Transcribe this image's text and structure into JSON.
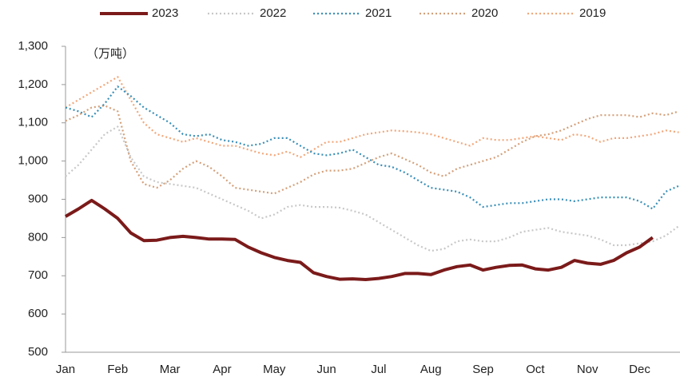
{
  "chart_data": {
    "type": "line",
    "annotation": "（万吨）",
    "categories": [
      "Jan",
      null,
      null,
      null,
      "Feb",
      null,
      null,
      null,
      "Mar",
      null,
      null,
      null,
      "Apr",
      null,
      null,
      null,
      "May",
      null,
      null,
      null,
      "Jun",
      null,
      null,
      null,
      "Jul",
      null,
      null,
      null,
      "Aug",
      null,
      null,
      null,
      "Sep",
      null,
      null,
      null,
      "Oct",
      null,
      null,
      null,
      "Nov",
      null,
      null,
      null,
      "Dec",
      null,
      null,
      null
    ],
    "ylim": [
      500,
      1300
    ],
    "yticks": [
      500,
      600,
      700,
      800,
      900,
      {
        "value": 1000,
        "label": "1,000"
      },
      {
        "value": 1100,
        "label": "1,100"
      },
      {
        "value": 1200,
        "label": "1,200"
      },
      {
        "value": 1300,
        "label": "1,300"
      }
    ],
    "series": [
      {
        "name": "2023",
        "color": "#7b1a1a",
        "style": "solid",
        "values": [
          855,
          875,
          897,
          875,
          850,
          812,
          792,
          793,
          800,
          803,
          800,
          796,
          796,
          795,
          775,
          760,
          748,
          740,
          735,
          708,
          698,
          691,
          692,
          690,
          693,
          698,
          706,
          706,
          703,
          715,
          724,
          728,
          715,
          722,
          727,
          728,
          718,
          715,
          722,
          740,
          733,
          730,
          740,
          760,
          775,
          800,
          null,
          null
        ]
      },
      {
        "name": "2022",
        "color": "#c8c8c8",
        "style": "dotted",
        "values": [
          960,
          990,
          1030,
          1070,
          1090,
          1010,
          960,
          945,
          940,
          935,
          930,
          915,
          900,
          885,
          870,
          850,
          860,
          880,
          885,
          880,
          880,
          878,
          870,
          860,
          840,
          820,
          800,
          780,
          765,
          770,
          790,
          795,
          790,
          790,
          800,
          815,
          820,
          825,
          815,
          810,
          805,
          795,
          780,
          780,
          785,
          790,
          805,
          830
        ]
      },
      {
        "name": "2021",
        "color": "#3a8fb7",
        "style": "dotted",
        "values": [
          1140,
          1130,
          1115,
          1150,
          1195,
          1170,
          1140,
          1120,
          1100,
          1070,
          1065,
          1070,
          1055,
          1050,
          1040,
          1045,
          1060,
          1060,
          1040,
          1020,
          1015,
          1020,
          1030,
          1010,
          990,
          985,
          970,
          950,
          930,
          925,
          920,
          905,
          880,
          885,
          890,
          890,
          895,
          900,
          900,
          895,
          900,
          905,
          905,
          905,
          895,
          875,
          920,
          935
        ]
      },
      {
        "name": "2020",
        "color": "#d4a07a",
        "style": "dotted",
        "values": [
          1105,
          1120,
          1140,
          1145,
          1130,
          1000,
          940,
          930,
          950,
          980,
          1000,
          985,
          960,
          930,
          925,
          920,
          915,
          930,
          945,
          965,
          975,
          975,
          980,
          995,
          1010,
          1020,
          1005,
          990,
          970,
          960,
          980,
          990,
          1000,
          1010,
          1030,
          1050,
          1065,
          1070,
          1080,
          1095,
          1110,
          1120,
          1120,
          1120,
          1115,
          1125,
          1120,
          1130
        ]
      },
      {
        "name": "2019",
        "color": "#f2a77a",
        "style": "dotted",
        "values": [
          1140,
          1160,
          1180,
          1200,
          1220,
          1160,
          1100,
          1070,
          1060,
          1050,
          1060,
          1050,
          1040,
          1040,
          1030,
          1020,
          1015,
          1025,
          1010,
          1030,
          1050,
          1050,
          1060,
          1070,
          1075,
          1080,
          1078,
          1075,
          1070,
          1060,
          1050,
          1040,
          1060,
          1055,
          1055,
          1060,
          1065,
          1060,
          1055,
          1070,
          1065,
          1050,
          1060,
          1060,
          1065,
          1070,
          1080,
          1075
        ]
      }
    ]
  }
}
